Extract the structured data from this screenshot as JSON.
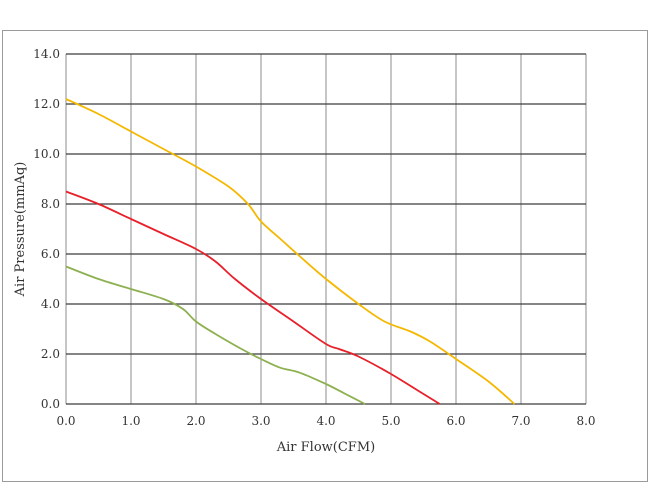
{
  "chart_data": {
    "type": "line",
    "title": "",
    "xlabel": "Air Flow(CFM)",
    "ylabel": "Air Pressure(mmAq)",
    "xlim": [
      0,
      8
    ],
    "ylim": [
      0,
      14
    ],
    "x_ticks": [
      "0.0",
      "1.0",
      "2.0",
      "3.0",
      "4.0",
      "5.0",
      "6.0",
      "7.0",
      "8.0"
    ],
    "y_ticks": [
      "0.0",
      "2.0",
      "4.0",
      "6.0",
      "8.0",
      "10.0",
      "12.0",
      "14.0"
    ],
    "grid": true,
    "legend": "none",
    "series": [
      {
        "color": "#f5b800",
        "points": [
          [
            0,
            12.2
          ],
          [
            0.5,
            11.6
          ],
          [
            1.0,
            10.9
          ],
          [
            1.5,
            10.2
          ],
          [
            2.0,
            9.5
          ],
          [
            2.5,
            8.7
          ],
          [
            2.8,
            8.0
          ],
          [
            3.0,
            7.3
          ],
          [
            3.3,
            6.6
          ],
          [
            3.6,
            5.9
          ],
          [
            4.0,
            5.0
          ],
          [
            4.5,
            4.0
          ],
          [
            4.9,
            3.3
          ],
          [
            5.3,
            2.9
          ],
          [
            5.6,
            2.5
          ],
          [
            6.0,
            1.8
          ],
          [
            6.5,
            0.9
          ],
          [
            6.9,
            0.0
          ]
        ]
      },
      {
        "color": "#e8202a",
        "points": [
          [
            0,
            8.5
          ],
          [
            0.5,
            8.0
          ],
          [
            1.0,
            7.4
          ],
          [
            1.5,
            6.8
          ],
          [
            2.0,
            6.2
          ],
          [
            2.3,
            5.7
          ],
          [
            2.6,
            5.0
          ],
          [
            3.0,
            4.2
          ],
          [
            3.5,
            3.3
          ],
          [
            4.0,
            2.4
          ],
          [
            4.2,
            2.2
          ],
          [
            4.5,
            1.9
          ],
          [
            5.0,
            1.2
          ],
          [
            5.5,
            0.4
          ],
          [
            5.75,
            0.0
          ]
        ]
      },
      {
        "color": "#8db050",
        "points": [
          [
            0,
            5.5
          ],
          [
            0.5,
            5.0
          ],
          [
            1.0,
            4.6
          ],
          [
            1.5,
            4.2
          ],
          [
            1.8,
            3.8
          ],
          [
            2.0,
            3.3
          ],
          [
            2.3,
            2.8
          ],
          [
            2.7,
            2.2
          ],
          [
            3.0,
            1.8
          ],
          [
            3.3,
            1.45
          ],
          [
            3.6,
            1.25
          ],
          [
            4.0,
            0.8
          ],
          [
            4.3,
            0.4
          ],
          [
            4.6,
            0.0
          ]
        ]
      }
    ]
  }
}
